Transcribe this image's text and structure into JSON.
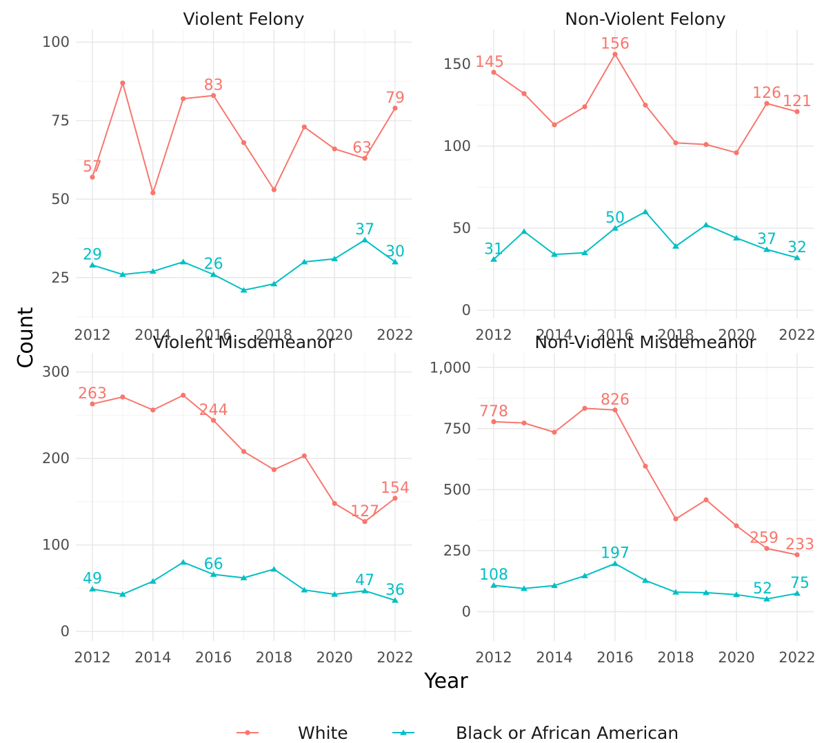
{
  "xlabel": "Year",
  "ylabel": "Count",
  "colors": {
    "white": "#F8766D",
    "black": "#00BFC4"
  },
  "legend": {
    "position": "bottom",
    "items": [
      {
        "label": "White",
        "color": "#F8766D",
        "marker": "circle"
      },
      {
        "label": "Black or African American",
        "color": "#00BFC4",
        "marker": "triangle"
      }
    ]
  },
  "chart_data": [
    {
      "type": "line",
      "title": "Violent Felony",
      "x": [
        2012,
        2013,
        2014,
        2015,
        2016,
        2017,
        2018,
        2019,
        2020,
        2021,
        2022
      ],
      "xticks": [
        "2012",
        "2014",
        "2016",
        "2018",
        "2020",
        "2022"
      ],
      "ylim": [
        12,
        104
      ],
      "yticks": [
        25,
        50,
        75,
        100
      ],
      "ytick_labels": [
        "25",
        "50",
        "75",
        "100"
      ],
      "series": [
        {
          "name": "White",
          "values": [
            57,
            87,
            52,
            82,
            83,
            68,
            53,
            73,
            66,
            63,
            79
          ],
          "labels": [
            "57",
            null,
            null,
            null,
            "83",
            null,
            null,
            null,
            null,
            "63",
            "79"
          ]
        },
        {
          "name": "Black or African American",
          "values": [
            29,
            26,
            27,
            30,
            26,
            21,
            23,
            30,
            31,
            37,
            30
          ],
          "labels": [
            "29",
            null,
            null,
            null,
            "26",
            null,
            null,
            null,
            null,
            "37",
            "30"
          ]
        }
      ]
    },
    {
      "type": "line",
      "title": "Non-Violent Felony",
      "x": [
        2012,
        2013,
        2014,
        2015,
        2016,
        2017,
        2018,
        2019,
        2020,
        2021,
        2022
      ],
      "xticks": [
        "2012",
        "2014",
        "2016",
        "2018",
        "2020",
        "2022"
      ],
      "ylim": [
        -5,
        171
      ],
      "yticks": [
        0,
        50,
        100,
        150
      ],
      "ytick_labels": [
        "0",
        "50",
        "100",
        "150"
      ],
      "series": [
        {
          "name": "White",
          "values": [
            145,
            132,
            113,
            124,
            156,
            125,
            102,
            101,
            96,
            126,
            121
          ],
          "labels": [
            "145",
            null,
            null,
            null,
            "156",
            null,
            null,
            null,
            null,
            "126",
            "121"
          ]
        },
        {
          "name": "Black or African American",
          "values": [
            31,
            48,
            34,
            35,
            50,
            60,
            39,
            52,
            44,
            37,
            32
          ],
          "labels": [
            "31",
            null,
            null,
            null,
            "50",
            null,
            null,
            null,
            null,
            "37",
            "32"
          ]
        }
      ]
    },
    {
      "type": "line",
      "title": "Violent Misdemeanor",
      "x": [
        2012,
        2013,
        2014,
        2015,
        2016,
        2017,
        2018,
        2019,
        2020,
        2021,
        2022
      ],
      "xticks": [
        "2012",
        "2014",
        "2016",
        "2018",
        "2020",
        "2022"
      ],
      "ylim": [
        -11,
        322
      ],
      "yticks": [
        0,
        100,
        200,
        300
      ],
      "ytick_labels": [
        "0",
        "100",
        "200",
        "300"
      ],
      "series": [
        {
          "name": "White",
          "values": [
            263,
            271,
            256,
            273,
            244,
            208,
            187,
            203,
            148,
            127,
            154
          ],
          "labels": [
            "263",
            null,
            null,
            null,
            "244",
            null,
            null,
            null,
            null,
            "127",
            "154"
          ]
        },
        {
          "name": "Black or African American",
          "values": [
            49,
            43,
            58,
            80,
            66,
            62,
            72,
            48,
            43,
            47,
            36
          ],
          "labels": [
            "49",
            null,
            null,
            null,
            "66",
            null,
            null,
            null,
            null,
            "47",
            "36"
          ]
        }
      ]
    },
    {
      "type": "line",
      "title": "Non-Violent Misdemeanor",
      "x": [
        2012,
        2013,
        2014,
        2015,
        2016,
        2017,
        2018,
        2019,
        2020,
        2021,
        2022
      ],
      "xticks": [
        "2012",
        "2014",
        "2016",
        "2018",
        "2020",
        "2022"
      ],
      "ylim": [
        -120,
        1060
      ],
      "yticks": [
        0,
        250,
        500,
        750,
        1000
      ],
      "ytick_labels": [
        "0",
        "250",
        "500",
        "750",
        "1,000"
      ],
      "series": [
        {
          "name": "White",
          "values": [
            778,
            773,
            735,
            833,
            826,
            596,
            380,
            458,
            352,
            259,
            233
          ],
          "labels": [
            "778",
            null,
            null,
            null,
            "826",
            null,
            null,
            null,
            null,
            "259",
            "233"
          ]
        },
        {
          "name": "Black or African American",
          "values": [
            108,
            95,
            107,
            147,
            197,
            128,
            80,
            78,
            70,
            52,
            75
          ],
          "labels": [
            "108",
            null,
            null,
            null,
            "197",
            null,
            null,
            null,
            null,
            "52",
            "75"
          ]
        }
      ]
    }
  ]
}
